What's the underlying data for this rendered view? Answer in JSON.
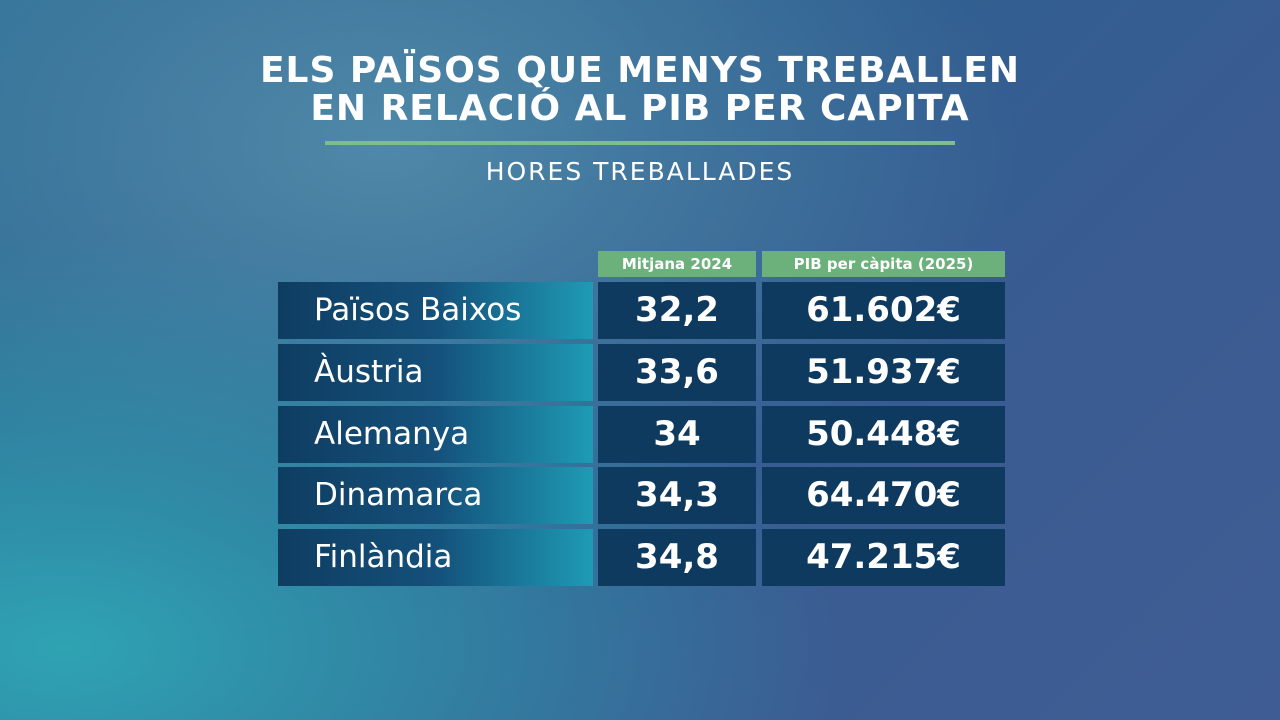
{
  "header": {
    "title_lines": [
      "ELS PAÏSOS QUE MENYS TREBALLEN",
      "EN RELACIÓ AL PIB PER CAPITA"
    ],
    "subtitle": "HORES TREBALLADES"
  },
  "table": {
    "columns": [
      "Mitjana 2024",
      "PIB per càpita (2025)"
    ],
    "rows": [
      [
        "Països Baixos",
        "32,2",
        "61.602€"
      ],
      [
        "Àustria",
        "33,6",
        "51.937€"
      ],
      [
        "Alemanya",
        "34",
        "50.448€"
      ],
      [
        "Dinamarca",
        "34,3",
        "64.470€"
      ],
      [
        "Finlàndia",
        "34,8",
        "47.215€"
      ]
    ]
  }
}
